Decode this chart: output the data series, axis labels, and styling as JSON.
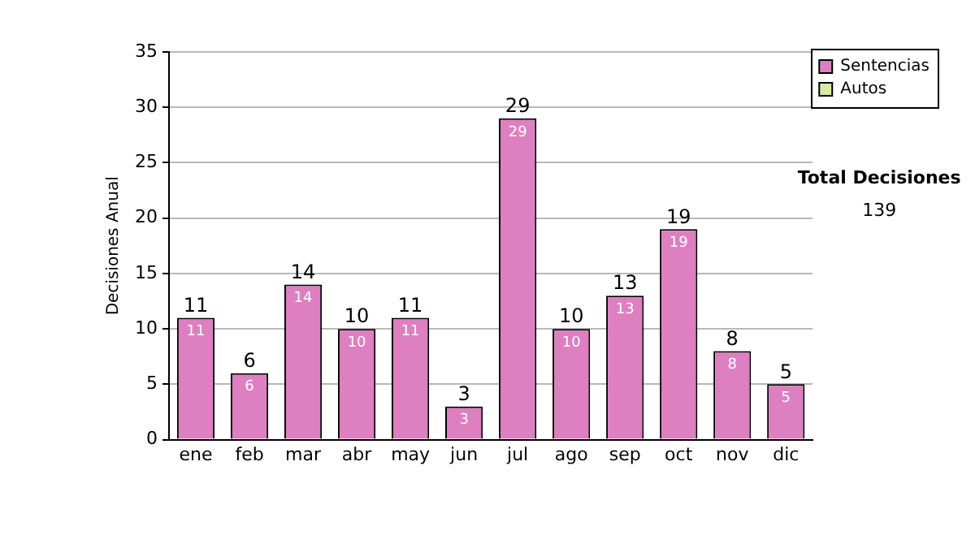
{
  "chart_data": {
    "type": "bar",
    "stacked": true,
    "ylabel": "Decisiones Anual",
    "categories": [
      "ene",
      "feb",
      "mar",
      "abr",
      "may",
      "jun",
      "jul",
      "ago",
      "sep",
      "oct",
      "nov",
      "dic"
    ],
    "series": [
      {
        "name": "Sentencias",
        "color": "#dd7fc0",
        "values": [
          11,
          6,
          14,
          10,
          11,
          3,
          29,
          10,
          13,
          19,
          8,
          5
        ],
        "value_labels": [
          "11",
          "6",
          "14",
          "10",
          "11",
          "3",
          "29",
          "10",
          "13",
          "19",
          "8",
          "5"
        ]
      },
      {
        "name": "Autos",
        "color": "#d6eca0",
        "values": [
          0,
          0,
          0,
          0,
          0,
          0,
          0,
          0,
          0,
          0,
          0,
          0
        ]
      }
    ],
    "totals": [
      "11",
      "6",
      "14",
      "10",
      "11",
      "3",
      "29",
      "10",
      "13",
      "19",
      "8",
      "5"
    ],
    "ylim": [
      0,
      35
    ],
    "yticks": [
      0,
      5,
      10,
      15,
      20,
      25,
      30,
      35
    ],
    "grid": "y",
    "legend": "right",
    "annotations": [
      "Total Decisiones",
      "139"
    ]
  }
}
